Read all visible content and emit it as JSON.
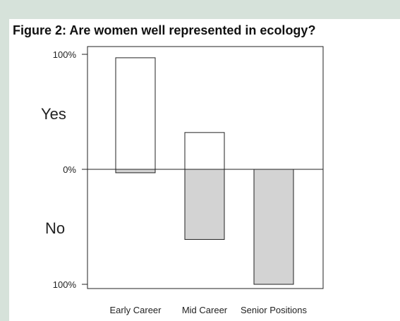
{
  "chart_data": {
    "type": "bar",
    "title": "Figure 2: Are women well represented in ecology?",
    "categories": [
      "Early Career",
      "Mid Career",
      "Senior Positions"
    ],
    "series": [
      {
        "name": "Yes",
        "values": [
          97,
          32,
          0
        ]
      },
      {
        "name": "No",
        "values": [
          3,
          61,
          100
        ]
      }
    ],
    "ylim": [
      -100,
      100
    ],
    "y_tick_labels": [
      "100%",
      "0%",
      "100%"
    ],
    "axis_side_labels": {
      "top": "Yes",
      "bottom": "No"
    },
    "grid": false,
    "legend": "none",
    "colors": {
      "yes_fill": "#ffffff",
      "no_fill": "#d3d3d3",
      "stroke": "#222222"
    }
  }
}
